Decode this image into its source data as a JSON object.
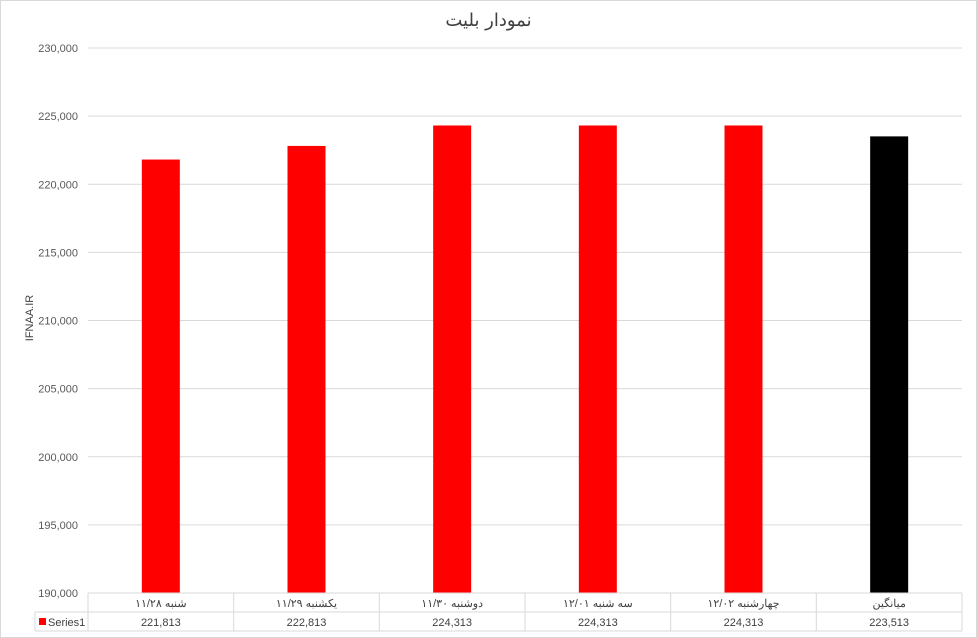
{
  "chart_data": {
    "type": "bar",
    "title": "نمودار بلیت",
    "ylabel": "IFNAA.IR",
    "xlabel": "",
    "categories": [
      "شنبه ۱۱/۲۸",
      "یکشنبه ۱۱/۲۹",
      "دوشنبه ۱۱/۳۰",
      "سه شنبه ۱۲/۰۱",
      "چهارشنبه ۱۲/۰۲",
      "میانگین"
    ],
    "series": [
      {
        "name": "Series1",
        "values": [
          221813,
          222813,
          224313,
          224313,
          224313,
          223513
        ]
      }
    ],
    "display_values": [
      "221,813",
      "222,813",
      "224,313",
      "224,313",
      "224,313",
      "223,513"
    ],
    "bar_colors": [
      "#FF0000",
      "#FF0000",
      "#FF0000",
      "#FF0000",
      "#FF0000",
      "#000000"
    ],
    "legend_color": "#FF0000",
    "ylim": [
      190000,
      230000
    ],
    "yticks": [
      190000,
      195000,
      200000,
      205000,
      210000,
      215000,
      220000,
      225000,
      230000
    ],
    "ytick_labels": [
      "190,000",
      "195,000",
      "200,000",
      "205,000",
      "210,000",
      "215,000",
      "220,000",
      "225,000",
      "230,000"
    ],
    "grid": true,
    "legend": "data-table"
  }
}
